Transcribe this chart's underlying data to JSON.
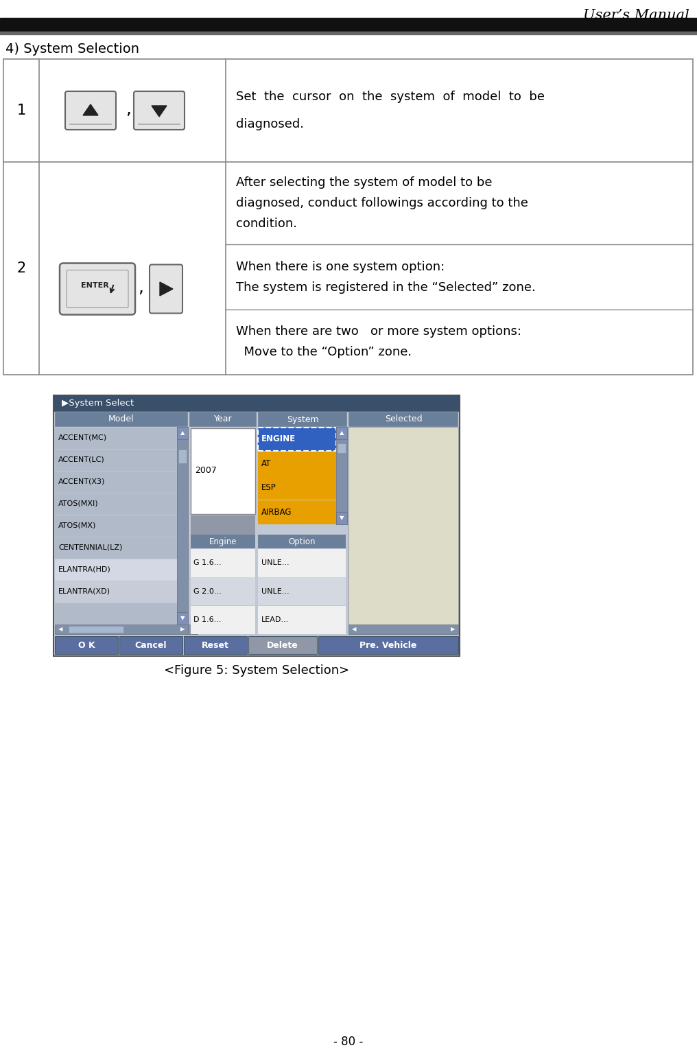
{
  "title": "User’s Manual",
  "page_num": "- 80 -",
  "section_title": "4) System Selection",
  "figure_caption": "<Figure 5: System Selection>",
  "bg_color": "#ffffff",
  "header_bar_color": "#111111",
  "row1_text": [
    "Set  the  cursor  on  the  system  of  model  to  be",
    "diagnosed."
  ],
  "row2_block1": [
    "After selecting the system of model to be",
    "diagnosed, conduct followings according to the",
    "condition."
  ],
  "row2_block2": [
    "When there is one system option:",
    "The system is registered in the “Selected” zone."
  ],
  "row2_block3": [
    "When there are two   or more system options:",
    "  Move to the “Option” zone."
  ],
  "screen": {
    "title_bar_color": "#3a4f6a",
    "title_bar_text": "▶System Select",
    "title_bar_text_color": "#ffffff",
    "header_row_color": "#6a7f9a",
    "header_text_color": "#ffffff",
    "headers": [
      "Model",
      "Year",
      "System",
      "Selected"
    ],
    "model_items": [
      "ACCENT(MC)",
      "ACCENT(LC)",
      "ACCENT(X3)",
      "ATOS(MXI)",
      "ATOS(MX)",
      "CENTENNIAL(LZ)",
      "ELANTRA(HD)",
      "ELANTRA(XD)",
      ""
    ],
    "year_value": "2007",
    "system_items": [
      "ENGINE",
      "AT",
      "ESP",
      "AIRBAG"
    ],
    "system_selected_item": "ENGINE",
    "system_selected_bg": "#0000cc",
    "system_list_bg": "#e8a000",
    "engine_items": [
      "G 1.6...",
      "G 2.0...",
      "D 1.6..."
    ],
    "option_items": [
      "UNLE...",
      "UNLE...",
      "LEAD..."
    ],
    "subheader_color": "#6a7f9a",
    "list_bg_white": "#ffffff",
    "list_bg_gray": "#b0bac8",
    "model_list_bg": "#b0bac8",
    "selected_bg": "#dcdcc8",
    "bottom_buttons": [
      "O K",
      "Cancel",
      "Reset",
      "Delete",
      "Pre. Vehicle"
    ],
    "bottom_btn_blue_color": "#5a6fa0",
    "bottom_btn_gray_color": "#9098a8",
    "bottom_btn_text_color": "#ffffff",
    "outer_bg": "#c0c8d4"
  }
}
